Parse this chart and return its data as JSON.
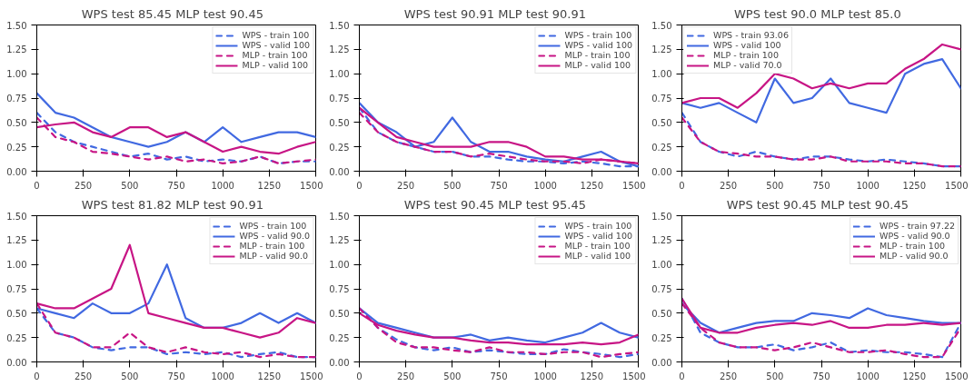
{
  "chart_data": [
    {
      "type": "line",
      "title": "WPS test 85.45   MLP test 90.45",
      "x": [
        0,
        100,
        200,
        300,
        400,
        500,
        600,
        700,
        800,
        900,
        1000,
        1100,
        1200,
        1300,
        1400,
        1500
      ],
      "xlim": [
        0,
        1500
      ],
      "xticks": [
        0,
        250,
        500,
        750,
        1000,
        1250,
        1500
      ],
      "ylim": [
        0,
        1.5
      ],
      "yticks": [
        {
          "value": 0,
          "label": "0.00"
        },
        {
          "value": 0.25,
          "label": "0.25"
        },
        {
          "value": 0.5,
          "label": "0.50"
        },
        {
          "value": 0.75,
          "label": "0.75"
        },
        {
          "value": 1,
          "label": "1.00"
        },
        {
          "value": 1.25,
          "label": "1.25"
        },
        {
          "value": 1.5,
          "label": "1.50"
        }
      ],
      "legend": "top right",
      "series": [
        {
          "name": "WPS - train 100",
          "color": "#4169e1",
          "line_style": "dashed",
          "values": [
            0.6,
            0.4,
            0.3,
            0.25,
            0.2,
            0.15,
            0.18,
            0.12,
            0.15,
            0.1,
            0.12,
            0.1,
            0.15,
            0.08,
            0.1,
            0.1
          ]
        },
        {
          "name": "WPS - valid 100",
          "color": "#4169e1",
          "line_style": "solid",
          "values": [
            0.8,
            0.6,
            0.55,
            0.45,
            0.35,
            0.3,
            0.25,
            0.3,
            0.4,
            0.3,
            0.45,
            0.3,
            0.35,
            0.4,
            0.4,
            0.35
          ]
        },
        {
          "name": "MLP - train 100",
          "color": "#c71585",
          "line_style": "dashed",
          "values": [
            0.55,
            0.35,
            0.3,
            0.2,
            0.18,
            0.15,
            0.12,
            0.15,
            0.1,
            0.12,
            0.08,
            0.1,
            0.15,
            0.08,
            0.1,
            0.12
          ]
        },
        {
          "name": "MLP - valid 100",
          "color": "#c71585",
          "line_style": "solid",
          "values": [
            0.45,
            0.48,
            0.5,
            0.4,
            0.35,
            0.45,
            0.45,
            0.35,
            0.4,
            0.3,
            0.2,
            0.25,
            0.2,
            0.18,
            0.25,
            0.3
          ]
        }
      ]
    },
    {
      "type": "line",
      "title": "WPS test 90.91   MLP test 90.91",
      "x": [
        0,
        100,
        200,
        300,
        400,
        500,
        600,
        700,
        800,
        900,
        1000,
        1100,
        1200,
        1300,
        1400,
        1500
      ],
      "xlim": [
        0,
        1500
      ],
      "xticks": [
        0,
        250,
        500,
        750,
        1000,
        1250,
        1500
      ],
      "ylim": [
        0,
        1.5
      ],
      "yticks": [
        {
          "value": 0,
          "label": "0.00"
        },
        {
          "value": 0.25,
          "label": "0.25"
        },
        {
          "value": 0.5,
          "label": "0.50"
        },
        {
          "value": 0.75,
          "label": "0.75"
        },
        {
          "value": 1,
          "label": "1.00"
        },
        {
          "value": 1.25,
          "label": "1.25"
        },
        {
          "value": 1.5,
          "label": "1.50"
        }
      ],
      "legend": "top right",
      "series": [
        {
          "name": "WPS - train 100",
          "color": "#4169e1",
          "line_style": "dashed",
          "values": [
            0.65,
            0.4,
            0.3,
            0.25,
            0.2,
            0.2,
            0.15,
            0.15,
            0.12,
            0.1,
            0.1,
            0.08,
            0.1,
            0.08,
            0.05,
            0.05
          ]
        },
        {
          "name": "WPS - valid 100",
          "color": "#4169e1",
          "line_style": "solid",
          "values": [
            0.7,
            0.5,
            0.4,
            0.25,
            0.3,
            0.55,
            0.3,
            0.2,
            0.2,
            0.15,
            0.12,
            0.1,
            0.15,
            0.2,
            0.1,
            0.05
          ]
        },
        {
          "name": "MLP - train 100",
          "color": "#c71585",
          "line_style": "dashed",
          "values": [
            0.6,
            0.4,
            0.3,
            0.25,
            0.2,
            0.2,
            0.15,
            0.18,
            0.15,
            0.12,
            0.1,
            0.1,
            0.08,
            0.12,
            0.1,
            0.08
          ]
        },
        {
          "name": "MLP - valid 100",
          "color": "#c71585",
          "line_style": "solid",
          "values": [
            0.65,
            0.5,
            0.35,
            0.3,
            0.25,
            0.25,
            0.25,
            0.3,
            0.3,
            0.25,
            0.15,
            0.15,
            0.12,
            0.12,
            0.1,
            0.08
          ]
        }
      ]
    },
    {
      "type": "line",
      "title": "WPS test 90.0   MLP test 85.0",
      "x": [
        0,
        100,
        200,
        300,
        400,
        500,
        600,
        700,
        800,
        900,
        1000,
        1100,
        1200,
        1300,
        1400,
        1500
      ],
      "xlim": [
        0,
        1500
      ],
      "xticks": [
        0,
        250,
        500,
        750,
        1000,
        1250,
        1500
      ],
      "ylim": [
        0,
        1.5
      ],
      "yticks": [
        {
          "value": 0,
          "label": "0.00"
        },
        {
          "value": 0.25,
          "label": "0.25"
        },
        {
          "value": 0.5,
          "label": "0.50"
        },
        {
          "value": 0.75,
          "label": "0.75"
        },
        {
          "value": 1,
          "label": "1.00"
        },
        {
          "value": 1.25,
          "label": "1.25"
        },
        {
          "value": 1.5,
          "label": "1.50"
        }
      ],
      "legend": "top left",
      "series": [
        {
          "name": "WPS - train 93.06",
          "color": "#4169e1",
          "line_style": "dashed",
          "values": [
            0.6,
            0.3,
            0.2,
            0.15,
            0.2,
            0.15,
            0.12,
            0.15,
            0.15,
            0.12,
            0.1,
            0.12,
            0.1,
            0.08,
            0.05,
            0.05
          ]
        },
        {
          "name": "WPS - valid 100",
          "color": "#4169e1",
          "line_style": "solid",
          "values": [
            0.7,
            0.65,
            0.7,
            0.6,
            0.5,
            0.95,
            0.7,
            0.75,
            0.95,
            0.7,
            0.65,
            0.6,
            1.0,
            1.1,
            1.15,
            0.85
          ]
        },
        {
          "name": "MLP - train 100",
          "color": "#c71585",
          "line_style": "dashed",
          "values": [
            0.55,
            0.3,
            0.2,
            0.18,
            0.15,
            0.15,
            0.12,
            0.12,
            0.15,
            0.1,
            0.1,
            0.1,
            0.08,
            0.08,
            0.05,
            0.05
          ]
        },
        {
          "name": "MLP - valid 70.0",
          "color": "#c71585",
          "line_style": "solid",
          "values": [
            0.7,
            0.75,
            0.75,
            0.65,
            0.8,
            1.0,
            0.95,
            0.85,
            0.9,
            0.85,
            0.9,
            0.9,
            1.05,
            1.15,
            1.3,
            1.25
          ]
        }
      ]
    },
    {
      "type": "line",
      "title": "WPS test 81.82   MLP test 90.91",
      "x": [
        0,
        100,
        200,
        300,
        400,
        500,
        600,
        700,
        800,
        900,
        1000,
        1100,
        1200,
        1300,
        1400,
        1500
      ],
      "xlim": [
        0,
        1500
      ],
      "xticks": [
        0,
        250,
        500,
        750,
        1000,
        1250,
        1500
      ],
      "ylim": [
        0,
        1.5
      ],
      "yticks": [
        {
          "value": 0,
          "label": "0.00"
        },
        {
          "value": 0.25,
          "label": "0.25"
        },
        {
          "value": 0.5,
          "label": "0.50"
        },
        {
          "value": 0.75,
          "label": "0.75"
        },
        {
          "value": 1,
          "label": "1.00"
        },
        {
          "value": 1.25,
          "label": "1.25"
        },
        {
          "value": 1.5,
          "label": "1.50"
        }
      ],
      "legend": "top right",
      "series": [
        {
          "name": "WPS - train 100",
          "color": "#4169e1",
          "line_style": "dashed",
          "values": [
            0.55,
            0.3,
            0.25,
            0.15,
            0.12,
            0.15,
            0.15,
            0.08,
            0.1,
            0.08,
            0.1,
            0.05,
            0.08,
            0.1,
            0.05,
            0.05
          ]
        },
        {
          "name": "WPS - valid 90.0",
          "color": "#4169e1",
          "line_style": "solid",
          "values": [
            0.55,
            0.5,
            0.45,
            0.6,
            0.5,
            0.5,
            0.6,
            1.0,
            0.45,
            0.35,
            0.35,
            0.4,
            0.5,
            0.4,
            0.5,
            0.4
          ]
        },
        {
          "name": "MLP - train 100",
          "color": "#c71585",
          "line_style": "dashed",
          "values": [
            0.6,
            0.3,
            0.25,
            0.15,
            0.15,
            0.3,
            0.15,
            0.1,
            0.15,
            0.1,
            0.08,
            0.1,
            0.05,
            0.08,
            0.05,
            0.05
          ]
        },
        {
          "name": "MLP - valid 90.0",
          "color": "#c71585",
          "line_style": "solid",
          "values": [
            0.6,
            0.55,
            0.55,
            0.65,
            0.75,
            1.2,
            0.5,
            0.45,
            0.4,
            0.35,
            0.35,
            0.3,
            0.25,
            0.3,
            0.45,
            0.4
          ]
        }
      ]
    },
    {
      "type": "line",
      "title": "WPS test 90.45   MLP test 95.45",
      "x": [
        0,
        100,
        200,
        300,
        400,
        500,
        600,
        700,
        800,
        900,
        1000,
        1100,
        1200,
        1300,
        1400,
        1500
      ],
      "xlim": [
        0,
        1500
      ],
      "xticks": [
        0,
        250,
        500,
        750,
        1000,
        1250,
        1500
      ],
      "ylim": [
        0,
        1.5
      ],
      "yticks": [
        {
          "value": 0,
          "label": "0.00"
        },
        {
          "value": 0.25,
          "label": "0.25"
        },
        {
          "value": 0.5,
          "label": "0.50"
        },
        {
          "value": 0.75,
          "label": "0.75"
        },
        {
          "value": 1,
          "label": "1.00"
        },
        {
          "value": 1.25,
          "label": "1.25"
        },
        {
          "value": 1.5,
          "label": "1.50"
        }
      ],
      "legend": "top right",
      "series": [
        {
          "name": "WPS - train 100",
          "color": "#4169e1",
          "line_style": "dashed",
          "values": [
            0.55,
            0.35,
            0.23,
            0.15,
            0.12,
            0.15,
            0.1,
            0.12,
            0.1,
            0.08,
            0.08,
            0.13,
            0.1,
            0.08,
            0.05,
            0.08
          ]
        },
        {
          "name": "WPS - valid 100",
          "color": "#4169e1",
          "line_style": "solid",
          "values": [
            0.55,
            0.4,
            0.35,
            0.3,
            0.25,
            0.25,
            0.28,
            0.22,
            0.25,
            0.22,
            0.2,
            0.25,
            0.3,
            0.4,
            0.3,
            0.25
          ]
        },
        {
          "name": "MLP - train 100",
          "color": "#c71585",
          "line_style": "dashed",
          "values": [
            0.55,
            0.35,
            0.2,
            0.15,
            0.15,
            0.12,
            0.1,
            0.15,
            0.1,
            0.1,
            0.08,
            0.1,
            0.1,
            0.05,
            0.08,
            0.1
          ]
        },
        {
          "name": "MLP - valid 100",
          "color": "#c71585",
          "line_style": "solid",
          "values": [
            0.5,
            0.38,
            0.32,
            0.28,
            0.25,
            0.25,
            0.22,
            0.2,
            0.2,
            0.18,
            0.18,
            0.18,
            0.2,
            0.18,
            0.2,
            0.28
          ]
        }
      ]
    },
    {
      "type": "line",
      "title": "WPS test 90.45   MLP test 90.45",
      "x": [
        0,
        100,
        200,
        300,
        400,
        500,
        600,
        700,
        800,
        900,
        1000,
        1100,
        1200,
        1300,
        1400,
        1500
      ],
      "xlim": [
        0,
        1500
      ],
      "xticks": [
        0,
        250,
        500,
        750,
        1000,
        1250,
        1500
      ],
      "ylim": [
        0,
        1.5
      ],
      "yticks": [
        {
          "value": 0,
          "label": "0.00"
        },
        {
          "value": 0.25,
          "label": "0.25"
        },
        {
          "value": 0.5,
          "label": "0.50"
        },
        {
          "value": 0.75,
          "label": "0.75"
        },
        {
          "value": 1,
          "label": "1.00"
        },
        {
          "value": 1.25,
          "label": "1.25"
        },
        {
          "value": 1.5,
          "label": "1.50"
        }
      ],
      "legend": "top right",
      "series": [
        {
          "name": "WPS - train 97.22",
          "color": "#4169e1",
          "line_style": "dashed",
          "values": [
            0.65,
            0.3,
            0.2,
            0.15,
            0.15,
            0.18,
            0.12,
            0.15,
            0.2,
            0.1,
            0.12,
            0.1,
            0.1,
            0.08,
            0.05,
            0.4
          ]
        },
        {
          "name": "WPS - valid 90.0",
          "color": "#4169e1",
          "line_style": "solid",
          "values": [
            0.6,
            0.4,
            0.3,
            0.35,
            0.4,
            0.42,
            0.42,
            0.5,
            0.48,
            0.45,
            0.55,
            0.48,
            0.45,
            0.42,
            0.4,
            0.4
          ]
        },
        {
          "name": "MLP - train 100",
          "color": "#c71585",
          "line_style": "dashed",
          "values": [
            0.6,
            0.35,
            0.2,
            0.15,
            0.15,
            0.12,
            0.15,
            0.2,
            0.15,
            0.1,
            0.1,
            0.12,
            0.08,
            0.05,
            0.05,
            0.35
          ]
        },
        {
          "name": "MLP - valid 90.0",
          "color": "#c71585",
          "line_style": "solid",
          "values": [
            0.65,
            0.35,
            0.3,
            0.3,
            0.35,
            0.38,
            0.4,
            0.38,
            0.42,
            0.35,
            0.35,
            0.38,
            0.38,
            0.4,
            0.38,
            0.4
          ]
        }
      ]
    }
  ]
}
